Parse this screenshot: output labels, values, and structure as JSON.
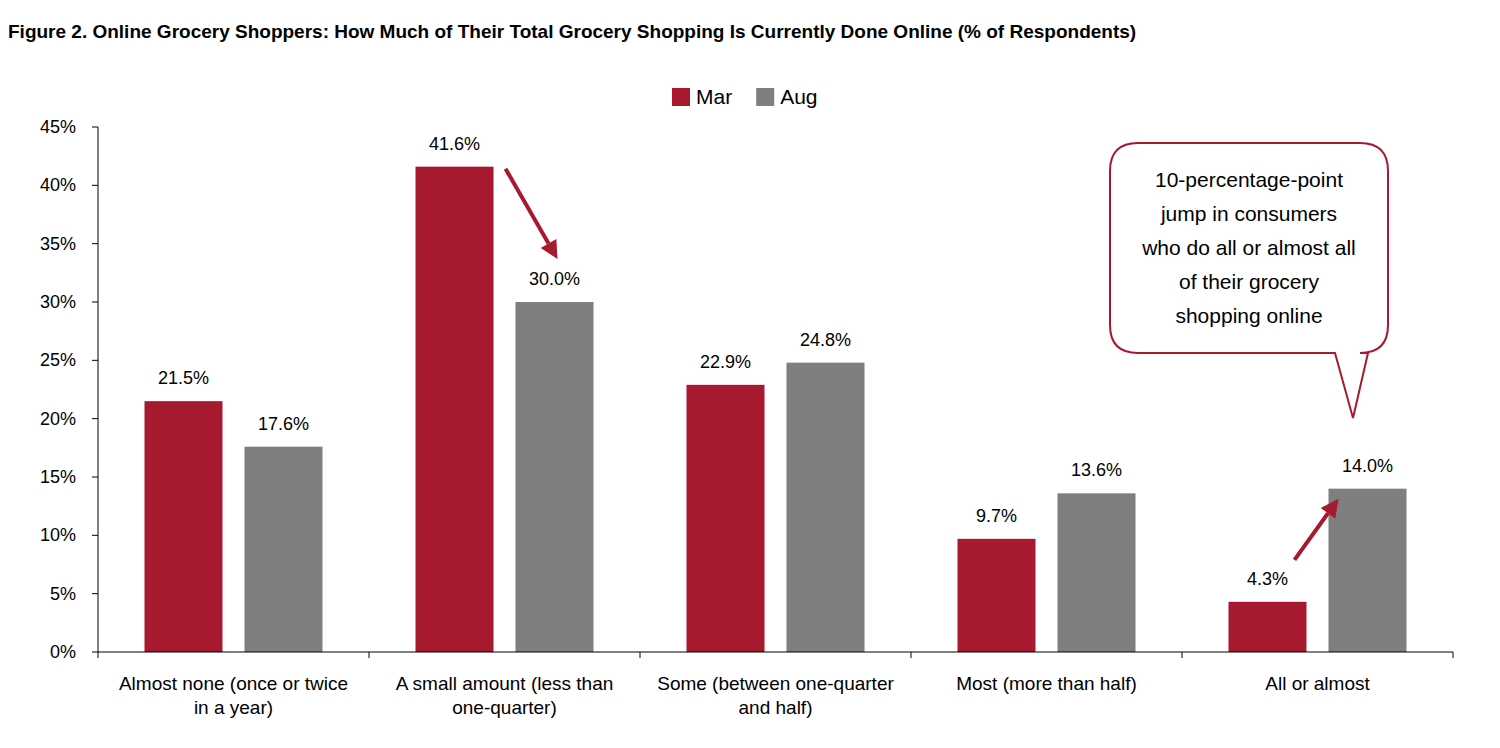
{
  "chart_data": {
    "type": "bar",
    "title": "Figure 2. Online Grocery Shoppers: How Much of Their Total Grocery Shopping Is Currently Done Online (% of Respondents)",
    "categories": [
      "Almost none (once or twice in a year)",
      "A small amount (less than one-quarter)",
      "Some (between one-quarter and half)",
      "Most (more than half)",
      "All or almost"
    ],
    "series": [
      {
        "name": "Mar",
        "color": "#a6192e",
        "values": [
          21.5,
          41.6,
          22.9,
          9.7,
          4.3
        ],
        "value_labels": [
          "21.5%",
          "41.6%",
          "22.9%",
          "9.7%",
          "4.3%"
        ]
      },
      {
        "name": "Aug",
        "color": "#7f7f7f",
        "values": [
          17.6,
          30.0,
          24.8,
          13.6,
          14.0
        ],
        "value_labels": [
          "17.6%",
          "30.0%",
          "24.8%",
          "13.6%",
          "14.0%"
        ]
      }
    ],
    "ylim": [
      0,
      45
    ],
    "yticks": [
      {
        "value": 0,
        "label": "0%"
      },
      {
        "value": 5,
        "label": "5%"
      },
      {
        "value": 10,
        "label": "10%"
      },
      {
        "value": 15,
        "label": "15%"
      },
      {
        "value": 20,
        "label": "20%"
      },
      {
        "value": 25,
        "label": "25%"
      },
      {
        "value": 30,
        "label": "30%"
      },
      {
        "value": 35,
        "label": "35%"
      },
      {
        "value": 40,
        "label": "40%"
      },
      {
        "value": 45,
        "label": "45%"
      }
    ],
    "grid": false,
    "legend": "top",
    "data_labels": true,
    "annotation": "10-percentage-point jump in consumers who do all or almost all of their grocery shopping online"
  }
}
